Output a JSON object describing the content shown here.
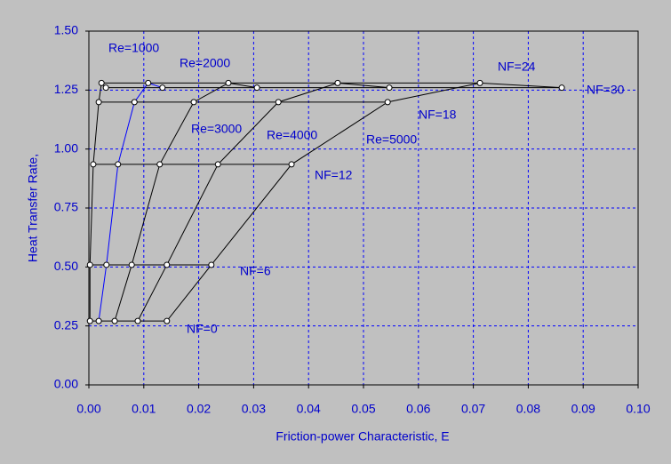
{
  "chart_data": {
    "type": "line",
    "x_label": "Friction-power Characteristic, E",
    "y_label": "Heat Transfer Rate,",
    "xlim": [
      0,
      0.1
    ],
    "ylim": [
      0,
      1.5
    ],
    "xticks": [
      {
        "value": 0,
        "label": "0.00"
      },
      {
        "value": 0.01,
        "label": "0.01"
      },
      {
        "value": 0.02,
        "label": "0.02"
      },
      {
        "value": 0.03,
        "label": "0.03"
      },
      {
        "value": 0.04,
        "label": "0.04"
      },
      {
        "value": 0.05,
        "label": "0.05"
      },
      {
        "value": 0.06,
        "label": "0.06"
      },
      {
        "value": 0.07,
        "label": "0.07"
      },
      {
        "value": 0.08,
        "label": "0.08"
      },
      {
        "value": 0.09,
        "label": "0.09"
      },
      {
        "value": 0.1,
        "label": "0.10"
      }
    ],
    "yticks": [
      {
        "value": 0,
        "label": "0.00"
      },
      {
        "value": 0.25,
        "label": "0.25"
      },
      {
        "value": 0.5,
        "label": "0.50"
      },
      {
        "value": 0.75,
        "label": "0.75"
      },
      {
        "value": 1,
        "label": "1.00"
      },
      {
        "value": 1.25,
        "label": "1.25"
      },
      {
        "value": 1.5,
        "label": "1.50"
      }
    ],
    "grid": true,
    "series": [
      {
        "name": "Re=1000",
        "color": "#000000",
        "x": [
          0.0002,
          0.0002,
          0.0008,
          0.0018,
          0.0023,
          0.0031
        ],
        "values": [
          0.271,
          0.509,
          0.935,
          1.199,
          1.28,
          1.26
        ]
      },
      {
        "name": "Re=2000",
        "color": "#0000ff",
        "x": [
          0.0018,
          0.0032,
          0.0053,
          0.0083,
          0.0108,
          0.0134
        ],
        "values": [
          0.271,
          0.509,
          0.935,
          1.199,
          1.28,
          1.26
        ]
      },
      {
        "name": "Re=3000",
        "color": "#000000",
        "x": [
          0.0047,
          0.0078,
          0.0129,
          0.0191,
          0.0254,
          0.0306
        ],
        "values": [
          0.271,
          0.509,
          0.935,
          1.199,
          1.28,
          1.26
        ]
      },
      {
        "name": "Re=4000",
        "color": "#000000",
        "x": [
          0.0089,
          0.0142,
          0.0235,
          0.0345,
          0.0453,
          0.0547
        ],
        "values": [
          0.271,
          0.509,
          0.935,
          1.199,
          1.28,
          1.26
        ]
      },
      {
        "name": "Re=5000",
        "color": "#000000",
        "x": [
          0.0142,
          0.0223,
          0.0369,
          0.0544,
          0.0712,
          0.0861
        ],
        "values": [
          0.271,
          0.509,
          0.935,
          1.199,
          1.28,
          1.26
        ]
      }
    ],
    "row_labels": [
      "NF=0",
      "NF=6",
      "NF=12",
      "NF=18",
      "NF=24",
      "NF=30"
    ]
  }
}
